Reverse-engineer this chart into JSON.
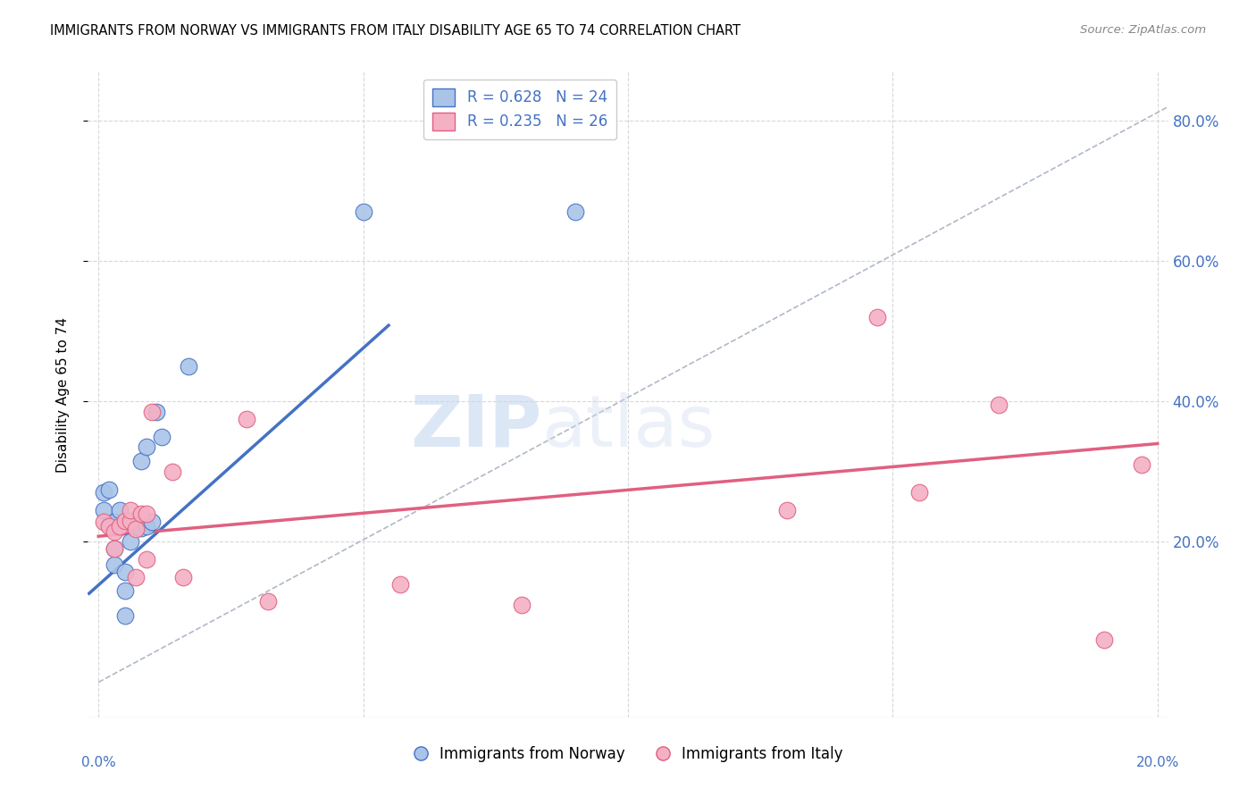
{
  "title": "IMMIGRANTS FROM NORWAY VS IMMIGRANTS FROM ITALY DISABILITY AGE 65 TO 74 CORRELATION CHART",
  "source": "Source: ZipAtlas.com",
  "ylabel": "Disability Age 65 to 74",
  "legend_norway": "Immigrants from Norway",
  "legend_italy": "Immigrants from Italy",
  "norway_R": "R = 0.628",
  "norway_N": "N = 24",
  "italy_R": "R = 0.235",
  "italy_N": "N = 26",
  "xlim": [
    -0.002,
    0.202
  ],
  "ylim": [
    -0.05,
    0.87
  ],
  "color_norway": "#aac4e8",
  "color_italy": "#f4b0c5",
  "color_norway_line": "#4472c4",
  "color_italy_line": "#e06080",
  "color_diag": "#b0b8c8",
  "norway_x": [
    0.001,
    0.001,
    0.002,
    0.002,
    0.003,
    0.003,
    0.003,
    0.004,
    0.005,
    0.005,
    0.005,
    0.006,
    0.007,
    0.007,
    0.008,
    0.008,
    0.009,
    0.009,
    0.01,
    0.011,
    0.012,
    0.017,
    0.05,
    0.09
  ],
  "norway_y": [
    0.245,
    0.27,
    0.275,
    0.225,
    0.228,
    0.19,
    0.168,
    0.245,
    0.157,
    0.13,
    0.095,
    0.2,
    0.222,
    0.222,
    0.22,
    0.315,
    0.222,
    0.335,
    0.228,
    0.385,
    0.35,
    0.45,
    0.67,
    0.67
  ],
  "italy_x": [
    0.001,
    0.002,
    0.003,
    0.003,
    0.004,
    0.005,
    0.006,
    0.006,
    0.007,
    0.007,
    0.008,
    0.009,
    0.009,
    0.01,
    0.014,
    0.016,
    0.028,
    0.032,
    0.057,
    0.08,
    0.13,
    0.147,
    0.155,
    0.17,
    0.19,
    0.197
  ],
  "italy_y": [
    0.228,
    0.222,
    0.215,
    0.19,
    0.222,
    0.23,
    0.23,
    0.245,
    0.218,
    0.15,
    0.24,
    0.175,
    0.24,
    0.385,
    0.3,
    0.15,
    0.375,
    0.115,
    0.14,
    0.11,
    0.245,
    0.52,
    0.27,
    0.395,
    0.06,
    0.31
  ],
  "norway_line_x": [
    -0.002,
    0.055
  ],
  "norway_line_y": [
    0.125,
    0.51
  ],
  "italy_line_x": [
    0.0,
    0.2
  ],
  "italy_line_y": [
    0.208,
    0.34
  ],
  "diag_line_x": [
    0.0,
    0.202
  ],
  "diag_line_y": [
    0.0,
    0.82
  ],
  "background_color": "#ffffff",
  "grid_color": "#d8d8d8",
  "watermark_zip": "ZIP",
  "watermark_atlas": "atlas",
  "marker_size": 180
}
